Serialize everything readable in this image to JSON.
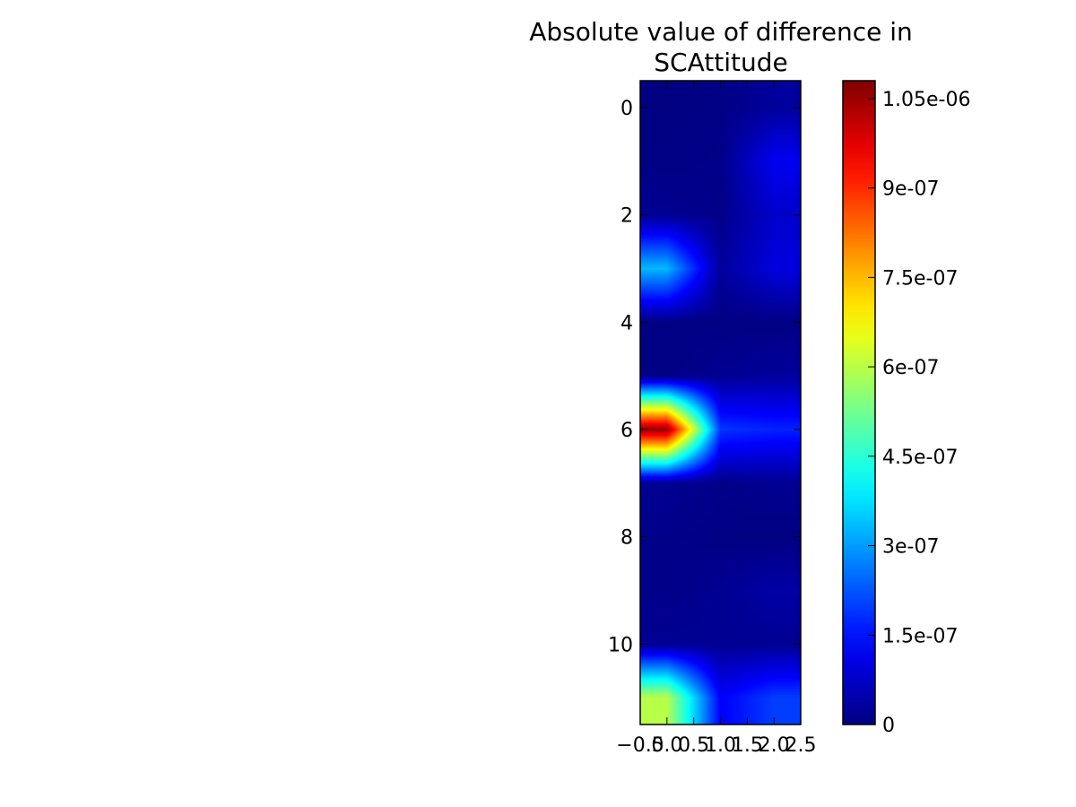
{
  "chart_data": {
    "type": "heatmap",
    "title": "Absolute value of difference in",
    "title_line2": "SCAttitude",
    "xlabel": "",
    "ylabel": "",
    "colormap": "jet",
    "interpolation": "bilinear",
    "x_columns": [
      0,
      1,
      2
    ],
    "y_rows": [
      0,
      1,
      2,
      3,
      4,
      5,
      6,
      7,
      8,
      9,
      10,
      11
    ],
    "xlim": [
      -0.5,
      2.5
    ],
    "ylim": [
      11.5,
      -0.5
    ],
    "x_ticks": [
      -0.5,
      0.0,
      0.5,
      1.0,
      1.5,
      2.0,
      2.5
    ],
    "x_tick_labels": [
      "−0.5",
      "0.0",
      "0.5",
      "1.0",
      "1.5",
      "2.0",
      "2.5"
    ],
    "y_ticks": [
      0,
      2,
      4,
      6,
      8,
      10
    ],
    "y_tick_labels": [
      "0",
      "2",
      "4",
      "6",
      "8",
      "10"
    ],
    "values": [
      [
        2e-09,
        5e-09,
        3e-08
      ],
      [
        5e-09,
        1e-08,
        1.2e-07
      ],
      [
        2e-08,
        1e-08,
        8e-08
      ],
      [
        3.3e-07,
        3e-08,
        1e-07
      ],
      [
        5e-09,
        3e-09,
        5e-09
      ],
      [
        5e-09,
        2e-08,
        3e-08
      ],
      [
        1.06e-06,
        1.9e-07,
        1.7e-07
      ],
      [
        2e-08,
        1e-08,
        2e-08
      ],
      [
        1e-08,
        5e-09,
        2e-09
      ],
      [
        1e-08,
        2e-08,
        4e-08
      ],
      [
        2e-08,
        2e-08,
        2e-08
      ],
      [
        6e-07,
        1.3e-07,
        2e-07
      ]
    ],
    "colorbar": {
      "vmin": 0,
      "vmax": 1.08e-06,
      "ticks": [
        0,
        1.5e-07,
        3e-07,
        4.5e-07,
        6e-07,
        7.5e-07,
        9e-07,
        1.05e-06
      ],
      "tick_labels": [
        "0",
        "1.5e-07",
        "3e-07",
        "4.5e-07",
        "6e-07",
        "7.5e-07",
        "9e-07",
        "1.05e-06"
      ]
    }
  }
}
